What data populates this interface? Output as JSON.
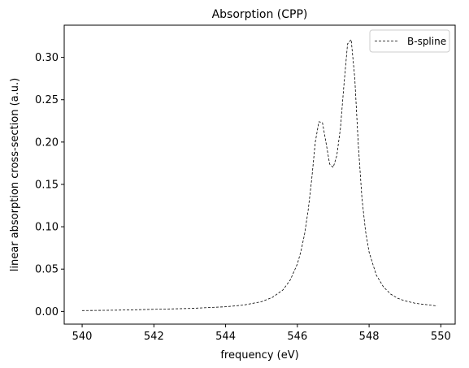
{
  "chart_data": {
    "type": "line",
    "title": "Absorption (CPP)",
    "xlabel": "frequency (eV)",
    "ylabel": "linear absorption cross-section (a.u.)",
    "xlim": [
      539.5,
      550.4
    ],
    "ylim": [
      -0.015,
      0.338
    ],
    "xticks": [
      540,
      542,
      544,
      546,
      548,
      550
    ],
    "xtick_labels": [
      "540",
      "542",
      "544",
      "546",
      "548",
      "550"
    ],
    "yticks": [
      0.0,
      0.05,
      0.1,
      0.15,
      0.2,
      0.25,
      0.3
    ],
    "ytick_labels": [
      "0.00",
      "0.05",
      "0.10",
      "0.15",
      "0.20",
      "0.25",
      "0.30"
    ],
    "grid": false,
    "legend_position": "top-right",
    "series": [
      {
        "name": "B-spline",
        "color": "#000000",
        "line_style": "dashed",
        "x": [
          540.0,
          541.0,
          542.0,
          543.0,
          544.0,
          544.5,
          545.0,
          545.3,
          545.6,
          545.8,
          546.0,
          546.1,
          546.2,
          546.3,
          546.4,
          546.5,
          546.6,
          546.7,
          546.8,
          546.9,
          547.0,
          547.1,
          547.2,
          547.3,
          547.4,
          547.5,
          547.6,
          547.7,
          547.8,
          547.9,
          548.0,
          548.2,
          548.4,
          548.6,
          548.8,
          549.0,
          549.3,
          549.6,
          549.9
        ],
        "y": [
          0.001,
          0.0015,
          0.0025,
          0.0035,
          0.0055,
          0.0075,
          0.0115,
          0.0165,
          0.0255,
          0.037,
          0.056,
          0.071,
          0.091,
          0.119,
          0.156,
          0.2,
          0.224,
          0.223,
          0.199,
          0.174,
          0.17,
          0.184,
          0.216,
          0.268,
          0.316,
          0.321,
          0.276,
          0.196,
          0.134,
          0.095,
          0.07,
          0.043,
          0.029,
          0.0205,
          0.0155,
          0.0125,
          0.0095,
          0.008,
          0.0065
        ]
      }
    ]
  }
}
